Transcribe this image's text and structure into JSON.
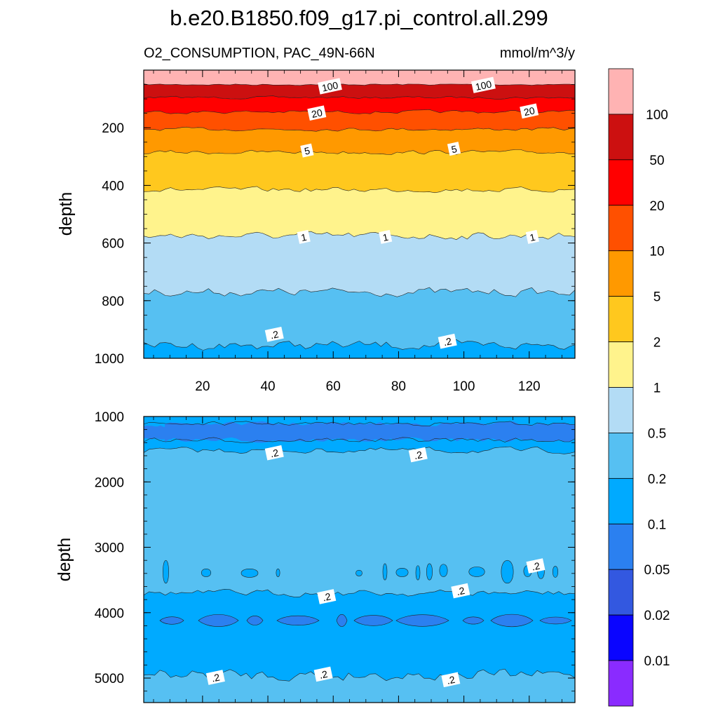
{
  "title": "b.e20.B1850.f09_g17.pi_control.all.299",
  "subtitle_left": "O2_CONSUMPTION, PAC_49N-66N",
  "subtitle_right": "mmol/m^3/y",
  "chart_data": [
    {
      "type": "heatmap",
      "panel": "upper",
      "ylabel": "depth",
      "xlabel": "",
      "x_ticks": [
        20,
        40,
        60,
        80,
        100,
        120
      ],
      "y_ticks": [
        200,
        400,
        600,
        800,
        1000
      ],
      "xlim": [
        2,
        134
      ],
      "ylim": [
        1000,
        0
      ],
      "y_reversed": true,
      "contour_boundaries_depth": [
        {
          "level": 100,
          "depth": 50
        },
        {
          "level": 50,
          "depth": 95
        },
        {
          "level": 20,
          "depth": 145
        },
        {
          "level": 10,
          "depth": 205
        },
        {
          "level": 5,
          "depth": 285
        },
        {
          "level": 2,
          "depth": 415
        },
        {
          "level": 1,
          "depth": 575
        },
        {
          "level": 0.5,
          "depth": 770
        },
        {
          "level": 0.2,
          "depth": 955
        }
      ],
      "contour_labels": [
        {
          "text": "100",
          "x": 59,
          "y": 57
        },
        {
          "text": "100",
          "x": 106,
          "y": 53
        },
        {
          "text": "20",
          "x": 55,
          "y": 150
        },
        {
          "text": "20",
          "x": 120,
          "y": 143
        },
        {
          "text": "5",
          "x": 52,
          "y": 280
        },
        {
          "text": "5",
          "x": 97,
          "y": 274
        },
        {
          "text": "1",
          "x": 51,
          "y": 580
        },
        {
          "text": "1",
          "x": 76,
          "y": 580
        },
        {
          "text": "1",
          "x": 121,
          "y": 580
        },
        {
          "text": ".2",
          "x": 42,
          "y": 918
        },
        {
          "text": ".2",
          "x": 95,
          "y": 942
        }
      ]
    },
    {
      "type": "heatmap",
      "panel": "lower",
      "ylabel": "depth",
      "xlabel": "",
      "x_ticks": [
        20,
        40,
        60,
        80,
        100,
        120
      ],
      "x_tick_labels_shown": false,
      "y_ticks": [
        1000,
        2000,
        3000,
        4000,
        5000
      ],
      "xlim": [
        2,
        134
      ],
      "ylim": [
        5375,
        1000
      ],
      "y_reversed": true,
      "value_bands": [
        {
          "from_depth": 1000,
          "to_depth": 1500,
          "range": "0.05-0.2",
          "note": "0.05-0.1 core near 1100-1350"
        },
        {
          "from_depth": 1500,
          "to_depth": 3700,
          "range": "0.2-0.5",
          "note": "0.1-0.2 patches near 3200-3500"
        },
        {
          "from_depth": 3700,
          "to_depth": 4950,
          "range": "0.1-0.2",
          "note": "0.05-0.1 lens near 4100"
        },
        {
          "from_depth": 4950,
          "to_depth": 5375,
          "range": "0.2-0.5"
        }
      ],
      "contour_labels": [
        {
          "text": ".2",
          "x": 42,
          "y": 1560
        },
        {
          "text": ".2",
          "x": 86,
          "y": 1590
        },
        {
          "text": ".2",
          "x": 122,
          "y": 3290
        },
        {
          "text": ".2",
          "x": 58,
          "y": 3760
        },
        {
          "text": ".2",
          "x": 99,
          "y": 3670
        },
        {
          "text": ".2",
          "x": 24,
          "y": 4995
        },
        {
          "text": ".2",
          "x": 57,
          "y": 4945
        },
        {
          "text": ".2",
          "x": 96,
          "y": 5030
        }
      ]
    }
  ],
  "colorbar": {
    "labels": [
      "100",
      "50",
      "20",
      "10",
      "5",
      "2",
      "1",
      "0.5",
      "0.2",
      "0.1",
      "0.05",
      "0.02",
      "0.01"
    ],
    "colors": [
      "#ffb3b3",
      "#cc1010",
      "#ff0000",
      "#ff5000",
      "#ff9900",
      "#ffc81e",
      "#fff38c",
      "#b3dcf5",
      "#56c0f2",
      "#00aaff",
      "#2b80f0",
      "#3358e0",
      "#0a05ff",
      "#8a2bff"
    ]
  }
}
